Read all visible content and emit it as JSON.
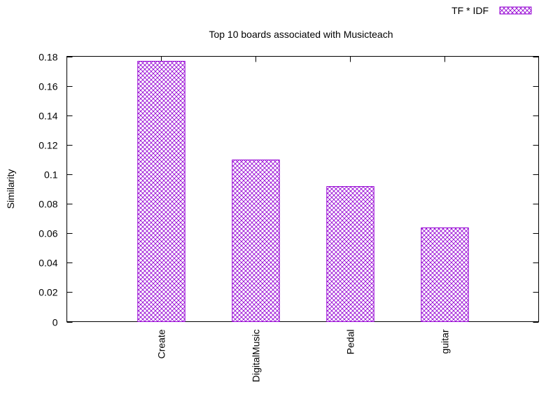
{
  "chart_data": {
    "type": "bar",
    "title": "Top 10 boards associated with Musicteach",
    "xlabel": "",
    "ylabel": "Similarity",
    "categories": [
      "Create",
      "DigitalMusic",
      "Pedal",
      "guitar"
    ],
    "series": [
      {
        "name": "TF * IDF",
        "values": [
          0.177,
          0.11,
          0.092,
          0.064
        ]
      }
    ],
    "ylim": [
      0,
      0.18
    ],
    "yticks": [
      "0",
      "0.02",
      "0.04",
      "0.06",
      "0.08",
      "0.1",
      "0.12",
      "0.14",
      "0.16",
      "0.18"
    ],
    "grid": false,
    "legend_position": "top-right",
    "bar_pattern": "crosshatch",
    "colors": {
      "bar_stroke": "#9400d3",
      "axis": "#000000",
      "background": "#ffffff"
    }
  }
}
